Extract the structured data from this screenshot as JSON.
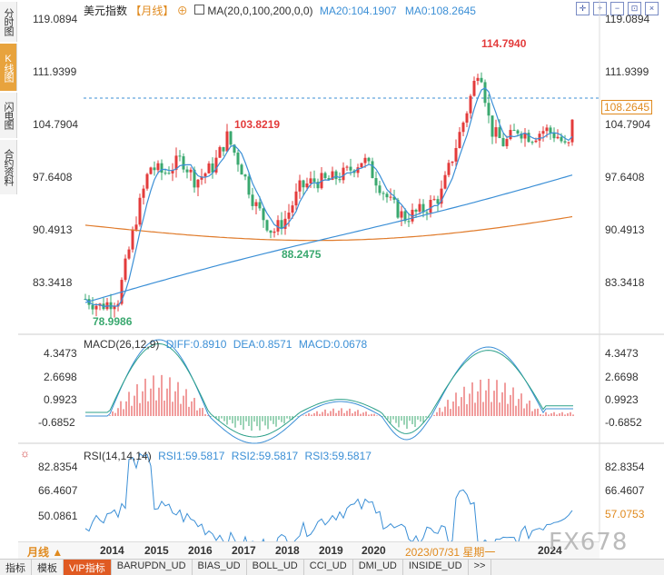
{
  "sidebar": {
    "tabs": [
      {
        "label": "分时图",
        "active": false
      },
      {
        "label": "K线图",
        "active": true
      },
      {
        "label": "闪电图",
        "active": false
      },
      {
        "label": "合约资料",
        "active": false
      }
    ]
  },
  "main_panel": {
    "title": "美元指数",
    "period": "【月线】",
    "ma_legend": "MA(20,0,100,200,0,0)",
    "ma20_label": "MA20:104.1907",
    "ma0_label": "MA0:108.2645",
    "y_ticks": [
      "119.0894",
      "111.9399",
      "104.7904",
      "97.6408",
      "90.4913",
      "83.3418"
    ],
    "current_price": "108.2645",
    "annotations": {
      "high": "114.7940",
      "mid_high": "103.8219",
      "mid_low": "88.2475",
      "low": "78.9986"
    }
  },
  "macd_panel": {
    "label": "MACD(26,12,9)",
    "diff": "DIFF:0.8910",
    "dea": "DEA:0.8571",
    "macd": "MACD:0.0678",
    "y_ticks": [
      "4.3473",
      "2.6698",
      "0.9923",
      "-0.6852"
    ]
  },
  "rsi_panel": {
    "label": "RSI(14,14,14)",
    "rsi1": "RSI1:59.5817",
    "rsi2": "RSI2:59.5817",
    "rsi3": "RSI3:59.5817",
    "y_ticks": [
      "82.8354",
      "66.4607",
      "50.0861"
    ],
    "current_value": "57.0753"
  },
  "x_axis": {
    "period_button": "月线 ▲",
    "years": [
      "2014",
      "2015",
      "2016",
      "2017",
      "2018",
      "2019",
      "2020",
      "2024"
    ],
    "cursor_label": "2023/07/31 星期一"
  },
  "bottom_tabs": [
    "指标",
    "模板",
    "VIP指标",
    "BARUPDN_UD",
    "BIAS_UD",
    "BOLL_UD",
    "CCI_UD",
    "DMI_UD",
    "INSIDE_UD",
    ">>"
  ],
  "watermark": "FX678",
  "colors": {
    "up": "#e33b3b",
    "down": "#3aa86f",
    "ma20": "#3b8fd6",
    "ma100": "#3b8fd6",
    "ma200": "#e07b2b",
    "accent": "#e05a22"
  }
}
